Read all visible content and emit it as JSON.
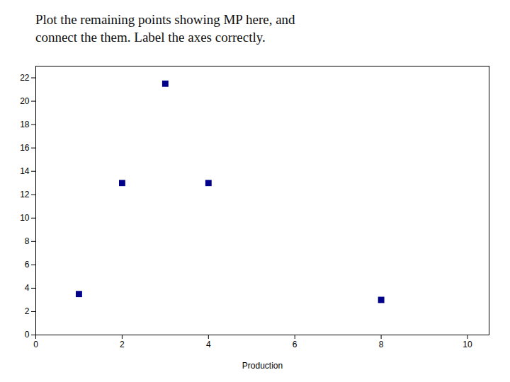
{
  "chart_data": {
    "type": "scatter",
    "title": "Plot the remaining points showing MP here, and\nconnect the them.  Label the axes correctly.",
    "xlabel": "Production",
    "x": [
      1,
      2,
      3,
      4,
      8
    ],
    "y": [
      3.5,
      13,
      21.5,
      13,
      3
    ],
    "xlim": [
      0,
      10.5
    ],
    "ylim": [
      0,
      23
    ],
    "xticks": [
      0,
      2,
      4,
      6,
      8,
      10
    ],
    "yticks": [
      0,
      2,
      4,
      6,
      8,
      10,
      12,
      14,
      16,
      18,
      20,
      22
    ],
    "marker": "square",
    "color": "#00008B",
    "grid": false
  }
}
